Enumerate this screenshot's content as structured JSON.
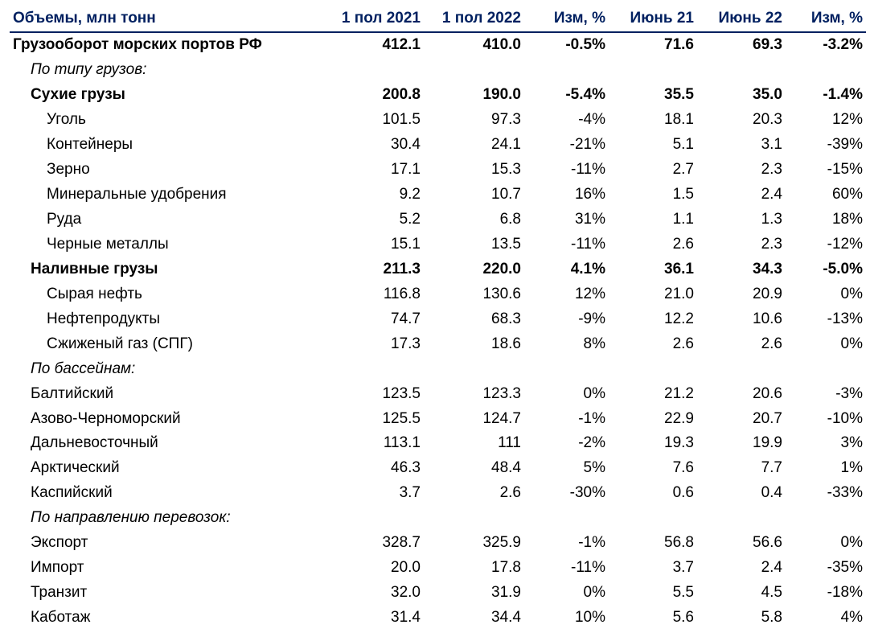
{
  "meta": {
    "header_color": "#002060",
    "text_color": "#000000",
    "bg_color": "#ffffff",
    "font_family": "Arial",
    "font_size_pt": 14
  },
  "columns": [
    "Объемы, млн тонн",
    "1 пол 2021",
    "1 пол 2022",
    "Изм, %",
    "Июнь 21",
    "Июнь 22",
    "Изм, %"
  ],
  "rows": [
    {
      "label": "Грузооборот морских портов РФ",
      "h1_2021": "412.1",
      "h1_2022": "410.0",
      "chg_h": "-0.5%",
      "jun21": "71.6",
      "jun22": "69.3",
      "chg_j": "-3.2%",
      "bold": true,
      "indent": 0
    },
    {
      "label": "По типу грузов:",
      "h1_2021": "",
      "h1_2022": "",
      "chg_h": "",
      "jun21": "",
      "jun22": "",
      "chg_j": "",
      "italic": true,
      "indent": 1
    },
    {
      "label": "Сухие грузы",
      "h1_2021": "200.8",
      "h1_2022": "190.0",
      "chg_h": "-5.4%",
      "jun21": "35.5",
      "jun22": "35.0",
      "chg_j": "-1.4%",
      "bold": true,
      "indent": 1
    },
    {
      "label": "Уголь",
      "h1_2021": "101.5",
      "h1_2022": "97.3",
      "chg_h": "-4%",
      "jun21": "18.1",
      "jun22": "20.3",
      "chg_j": "12%",
      "indent": 2
    },
    {
      "label": "Контейнеры",
      "h1_2021": "30.4",
      "h1_2022": "24.1",
      "chg_h": "-21%",
      "jun21": "5.1",
      "jun22": "3.1",
      "chg_j": "-39%",
      "indent": 2
    },
    {
      "label": "Зерно",
      "h1_2021": "17.1",
      "h1_2022": "15.3",
      "chg_h": "-11%",
      "jun21": "2.7",
      "jun22": "2.3",
      "chg_j": "-15%",
      "indent": 2
    },
    {
      "label": "Минеральные удобрения",
      "h1_2021": "9.2",
      "h1_2022": "10.7",
      "chg_h": "16%",
      "jun21": "1.5",
      "jun22": "2.4",
      "chg_j": "60%",
      "indent": 2
    },
    {
      "label": "Руда",
      "h1_2021": "5.2",
      "h1_2022": "6.8",
      "chg_h": "31%",
      "jun21": "1.1",
      "jun22": "1.3",
      "chg_j": "18%",
      "indent": 2
    },
    {
      "label": "Черные металлы",
      "h1_2021": "15.1",
      "h1_2022": "13.5",
      "chg_h": "-11%",
      "jun21": "2.6",
      "jun22": "2.3",
      "chg_j": "-12%",
      "indent": 2
    },
    {
      "label": "Наливные грузы",
      "h1_2021": "211.3",
      "h1_2022": "220.0",
      "chg_h": "4.1%",
      "jun21": "36.1",
      "jun22": "34.3",
      "chg_j": "-5.0%",
      "bold": true,
      "indent": 1
    },
    {
      "label": "Сырая нефть",
      "h1_2021": "116.8",
      "h1_2022": "130.6",
      "chg_h": "12%",
      "jun21": "21.0",
      "jun22": "20.9",
      "chg_j": "0%",
      "indent": 2
    },
    {
      "label": "Нефтепродукты",
      "h1_2021": "74.7",
      "h1_2022": "68.3",
      "chg_h": "-9%",
      "jun21": "12.2",
      "jun22": "10.6",
      "chg_j": "-13%",
      "indent": 2
    },
    {
      "label": "Сжиженый газ (СПГ)",
      "h1_2021": "17.3",
      "h1_2022": "18.6",
      "chg_h": "8%",
      "jun21": "2.6",
      "jun22": "2.6",
      "chg_j": "0%",
      "indent": 2
    },
    {
      "label": "По бассейнам:",
      "h1_2021": "",
      "h1_2022": "",
      "chg_h": "",
      "jun21": "",
      "jun22": "",
      "chg_j": "",
      "italic": true,
      "indent": 1
    },
    {
      "label": "Балтийский",
      "h1_2021": "123.5",
      "h1_2022": "123.3",
      "chg_h": "0%",
      "jun21": "21.2",
      "jun22": "20.6",
      "chg_j": "-3%",
      "indent": 1
    },
    {
      "label": "Азово-Черноморский",
      "h1_2021": "125.5",
      "h1_2022": "124.7",
      "chg_h": "-1%",
      "jun21": "22.9",
      "jun22": "20.7",
      "chg_j": "-10%",
      "indent": 1
    },
    {
      "label": "Дальневосточный",
      "h1_2021": "113.1",
      "h1_2022": "111",
      "chg_h": "-2%",
      "jun21": "19.3",
      "jun22": "19.9",
      "chg_j": "3%",
      "indent": 1
    },
    {
      "label": "Арктический",
      "h1_2021": "46.3",
      "h1_2022": "48.4",
      "chg_h": "5%",
      "jun21": "7.6",
      "jun22": "7.7",
      "chg_j": "1%",
      "indent": 1
    },
    {
      "label": "Каспийский",
      "h1_2021": "3.7",
      "h1_2022": "2.6",
      "chg_h": "-30%",
      "jun21": "0.6",
      "jun22": "0.4",
      "chg_j": "-33%",
      "indent": 1
    },
    {
      "label": "По направлению перевозок:",
      "h1_2021": "",
      "h1_2022": "",
      "chg_h": "",
      "jun21": "",
      "jun22": "",
      "chg_j": "",
      "italic": true,
      "indent": 1
    },
    {
      "label": "Экспорт",
      "h1_2021": "328.7",
      "h1_2022": "325.9",
      "chg_h": "-1%",
      "jun21": "56.8",
      "jun22": "56.6",
      "chg_j": "0%",
      "indent": 1
    },
    {
      "label": "Импорт",
      "h1_2021": "20.0",
      "h1_2022": "17.8",
      "chg_h": "-11%",
      "jun21": "3.7",
      "jun22": "2.4",
      "chg_j": "-35%",
      "indent": 1
    },
    {
      "label": "Транзит",
      "h1_2021": "32.0",
      "h1_2022": "31.9",
      "chg_h": "0%",
      "jun21": "5.5",
      "jun22": "4.5",
      "chg_j": "-18%",
      "indent": 1
    },
    {
      "label": "Каботаж",
      "h1_2021": "31.4",
      "h1_2022": "34.4",
      "chg_h": "10%",
      "jun21": "5.6",
      "jun22": "5.8",
      "chg_j": "4%",
      "indent": 1
    }
  ]
}
